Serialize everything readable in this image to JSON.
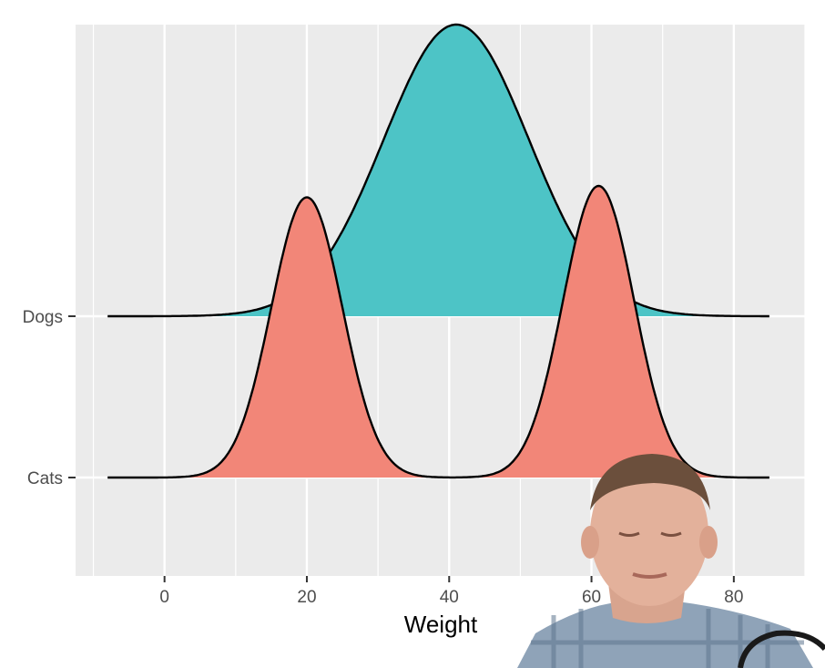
{
  "chart_data": {
    "type": "ridgeline",
    "xlabel": "Weight",
    "ylabel": "",
    "xlim": [
      -12.5,
      90
    ],
    "x_ticks": [
      0,
      20,
      40,
      60,
      80
    ],
    "x_tick_labels": [
      "0",
      "20",
      "40",
      "60",
      "80"
    ],
    "y_categories": [
      "Cats",
      "Dogs"
    ],
    "grid": true,
    "legend": "none",
    "colors": {
      "panel_bg": "#ebebeb",
      "grid": "#ffffff",
      "outline": "#000000",
      "Dogs": "#4dc4c6",
      "Cats": "#f28678"
    },
    "series": [
      {
        "name": "Dogs",
        "x_range": [
          -8,
          85
        ],
        "density": [
          {
            "mean": 41,
            "sd": 10.2,
            "weight": 1.0
          }
        ]
      },
      {
        "name": "Cats",
        "x_range": [
          -8,
          85
        ],
        "density": [
          {
            "mean": 20,
            "sd": 5,
            "weight": 0.49
          },
          {
            "mean": 61,
            "sd": 5,
            "weight": 0.51
          }
        ]
      }
    ]
  },
  "overlay": {
    "presenter_webcam": "presenter-photo"
  }
}
